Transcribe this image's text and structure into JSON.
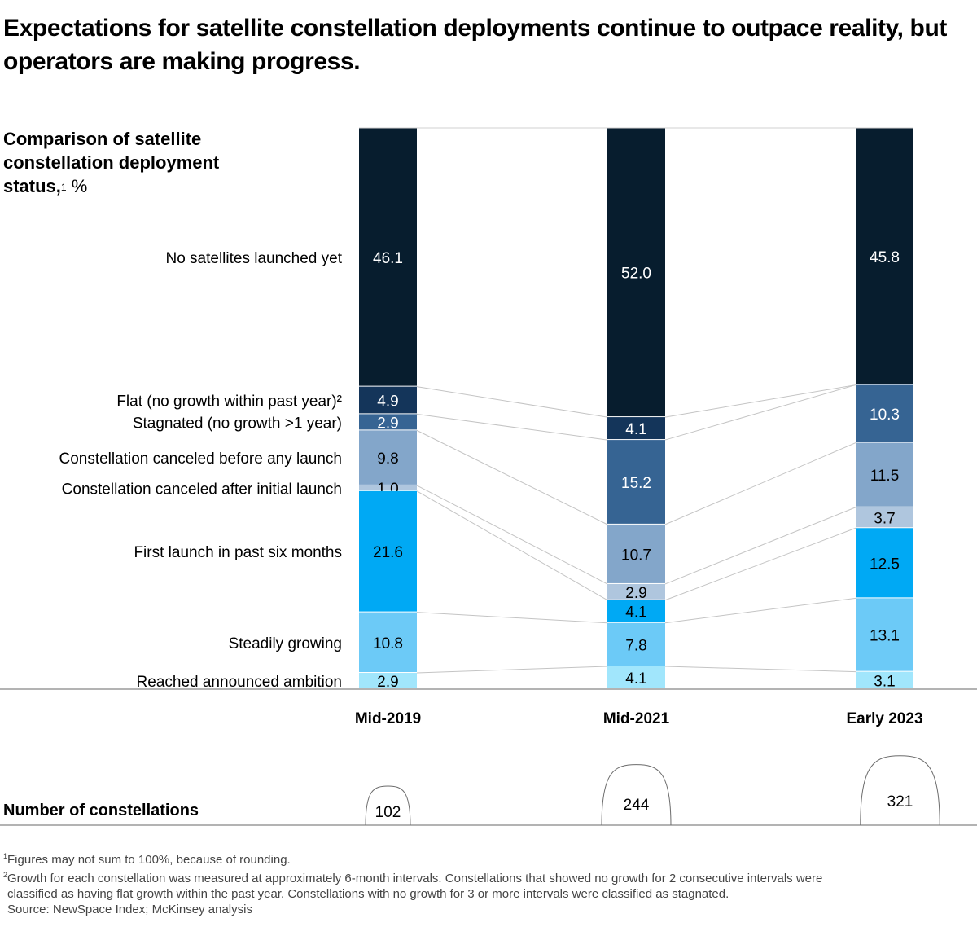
{
  "title": "Expectations for satellite constellation deployments continue to outpace reality, but operators are making progress.",
  "subtitle": {
    "text": "Comparison of satellite constellation deployment status,",
    "footnote_ref": "1",
    "unit": " %"
  },
  "chart_data": {
    "type": "bar",
    "stacked": true,
    "orientation": "vertical",
    "title": "Comparison of satellite constellation deployment status, %",
    "categories": [
      "Mid-2019",
      "Mid-2021",
      "Early 2023"
    ],
    "ylim": [
      0,
      100
    ],
    "grid": false,
    "legend": "category labels at left of first bar",
    "series": [
      {
        "name": "No satellites launched yet",
        "label": "No satellites launched yet",
        "values": [
          46.1,
          52.0,
          45.8
        ],
        "color": "#071d2e",
        "text_color": "#ffffff"
      },
      {
        "name": "Flat (no growth within past year)",
        "label": "Flat (no growth within past year)²",
        "values": [
          4.9,
          4.1,
          null
        ],
        "color": "#14355a",
        "text_color": "#ffffff"
      },
      {
        "name": "Stagnated (no growth >1 year)",
        "label": "Stagnated (no growth >1 year)",
        "values": [
          2.9,
          15.2,
          10.3
        ],
        "color": "#366493",
        "text_color": "#ffffff"
      },
      {
        "name": "Constellation canceled before any launch",
        "label": "Constellation canceled before any launch",
        "values": [
          9.8,
          10.7,
          11.5
        ],
        "color": "#83a6ca",
        "text_color": "#000000"
      },
      {
        "name": "Constellation canceled after initial launch",
        "label": "Constellation canceled after initial launch",
        "values": [
          1.0,
          2.9,
          3.7
        ],
        "color": "#afc6de",
        "text_color": "#000000"
      },
      {
        "name": "First launch in past six months",
        "label": "First launch in past six months",
        "values": [
          21.6,
          4.1,
          12.5
        ],
        "color": "#00a9f4",
        "text_color": "#000000"
      },
      {
        "name": "Steadily growing",
        "label": "Steadily growing",
        "values": [
          10.8,
          7.8,
          13.1
        ],
        "color": "#6ccaf7",
        "text_color": "#000000"
      },
      {
        "name": "Reached announced ambition",
        "label": "Reached announced ambition",
        "values": [
          2.9,
          4.1,
          3.1
        ],
        "color": "#a1e6fc",
        "text_color": "#000000"
      }
    ],
    "constellation_counts": {
      "title": "Number of constellations",
      "values": [
        102,
        244,
        321
      ]
    }
  },
  "footnotes": [
    {
      "ref": "1",
      "text": "Figures may not sum to 100%, because of rounding."
    },
    {
      "ref": "2",
      "text": "Growth for each constellation was measured at approximately 6-month intervals. Constellations that showed no growth for 2 consecutive intervals were"
    },
    {
      "ref": "",
      "text": "classified as having flat growth within the past year. Constellations with no growth for 3 or more intervals were classified as stagnated."
    },
    {
      "ref": "",
      "text": "Source: NewSpace Index; McKinsey analysis"
    }
  ]
}
